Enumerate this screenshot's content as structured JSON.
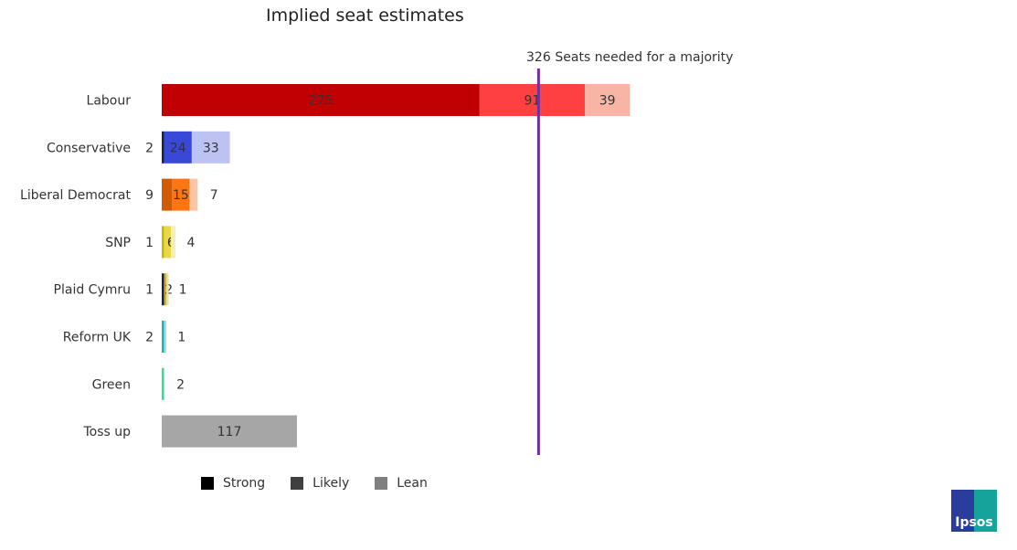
{
  "chart_data": {
    "type": "bar",
    "orientation": "horizontal",
    "stacked": true,
    "title": "Implied seat estimates",
    "categories": [
      "Labour",
      "Conservative",
      "Liberal Democrat",
      "SNP",
      "Plaid Cymru",
      "Reform UK",
      "Green",
      "Toss up"
    ],
    "segments": [
      "Strong",
      "Likely",
      "Lean"
    ],
    "values": [
      [
        275,
        91,
        39
      ],
      [
        2,
        24,
        33
      ],
      [
        9,
        15,
        7
      ],
      [
        1,
        6,
        4
      ],
      [
        1,
        2,
        1
      ],
      [
        2,
        0,
        1
      ],
      [
        0,
        0,
        2
      ],
      [
        117,
        0,
        0
      ]
    ],
    "colors": [
      [
        "#c00000",
        "#ff4040",
        "#f8b4a4"
      ],
      [
        "#1a2350",
        "#3a48d8",
        "#bcc3f2"
      ],
      [
        "#d25a00",
        "#ff7514",
        "#ffc4a6"
      ],
      [
        "#c9b600",
        "#e8d84a",
        "#f3eeb4"
      ],
      [
        "#1a2340",
        "#d7b02a",
        "#e9e0a8"
      ],
      [
        "#1ab5b5",
        "#1ab5b5",
        "#9fe0e0"
      ],
      [
        "#2de08a",
        "#2de08a",
        "#2de08a"
      ],
      [
        "#a6a6a6",
        "#a6a6a6",
        "#a6a6a6"
      ]
    ],
    "xlim": [
      0,
      405
    ],
    "reference_line": {
      "value": 326,
      "label": "Seats needed for a majority",
      "color": "#7030a0"
    },
    "legend": [
      {
        "label": "Strong",
        "color": "#000000"
      },
      {
        "label": "Likely",
        "color": "#404040"
      },
      {
        "label": "Lean",
        "color": "#808080"
      }
    ],
    "legend_position": "bottom",
    "grid": false
  },
  "logo": "Ipsos"
}
